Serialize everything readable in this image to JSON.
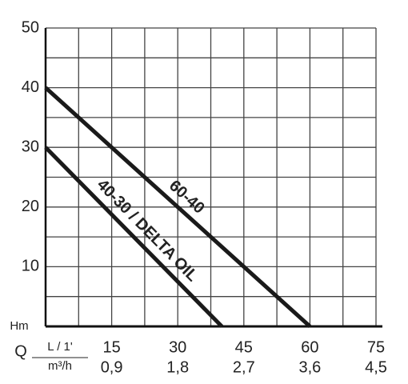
{
  "chart_data": {
    "type": "line",
    "y_label": "Hm",
    "x_label": "Q",
    "x_unit": "L / 1'",
    "x2_unit": "m³/h",
    "xlim": [
      0,
      75
    ],
    "xticks": [
      15,
      30,
      45,
      60,
      75
    ],
    "x2_labels": [
      "0,9",
      "1,8",
      "2,7",
      "3,6",
      "4,5"
    ],
    "ylim": [
      0,
      50
    ],
    "yticks": [
      10,
      20,
      30,
      40,
      50
    ],
    "grid": true,
    "series": [
      {
        "name": "60-40",
        "color": "#1a1a1a",
        "x": [
          0,
          60
        ],
        "values": [
          40,
          0
        ]
      },
      {
        "name": "40-30 / DELTA OIL",
        "color": "#1a1a1a",
        "x": [
          0,
          40
        ],
        "values": [
          30,
          0
        ]
      }
    ]
  }
}
